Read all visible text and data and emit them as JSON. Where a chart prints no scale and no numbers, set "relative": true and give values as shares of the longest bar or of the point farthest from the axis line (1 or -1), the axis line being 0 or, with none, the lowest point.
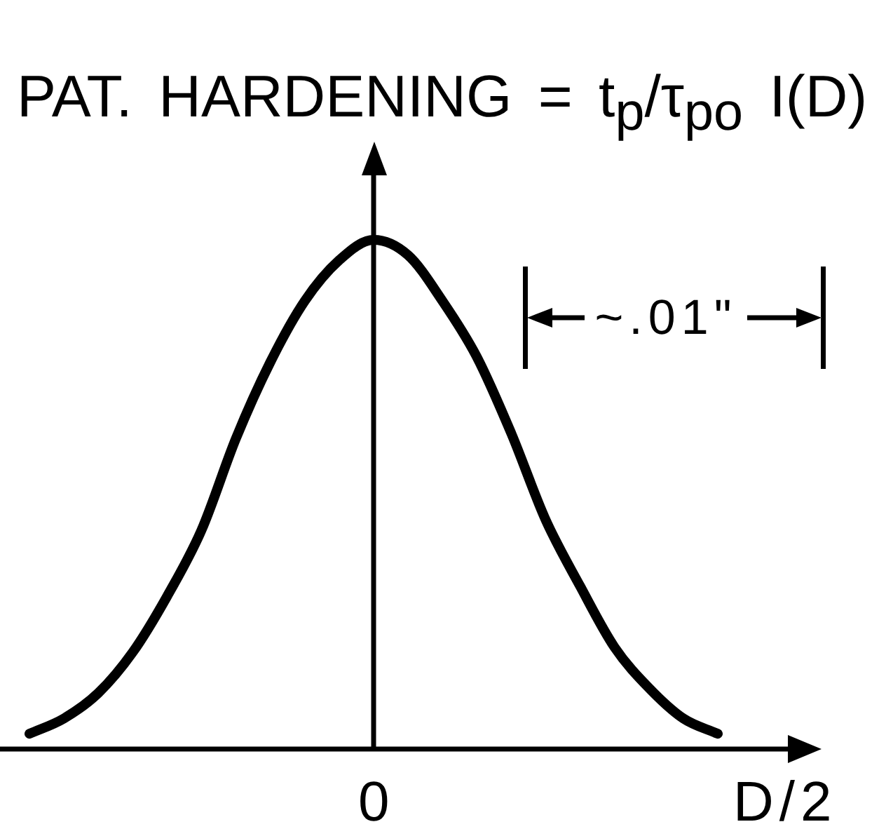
{
  "chart_data": {
    "type": "line",
    "title": "PAT. HARDENING = t$_{p}$/τ$_{po}$ I(D)",
    "xlabel": "D/2",
    "relative": true,
    "categories": [
      null,
      null,
      null,
      null,
      null,
      null,
      null,
      null,
      null,
      null,
      null,
      null,
      null,
      null,
      null,
      null,
      null,
      null,
      null,
      null,
      null
    ],
    "values": [
      0.03,
      0.06,
      0.11,
      0.19,
      0.3,
      0.43,
      0.61,
      0.76,
      0.88,
      0.96,
      1,
      0.97,
      0.88,
      0.77,
      0.62,
      0.45,
      0.32,
      0.2,
      0.12,
      0.06,
      0.03
    ],
    "color": "#000000",
    "annotations": [
      "~.01\"",
      "0"
    ]
  }
}
